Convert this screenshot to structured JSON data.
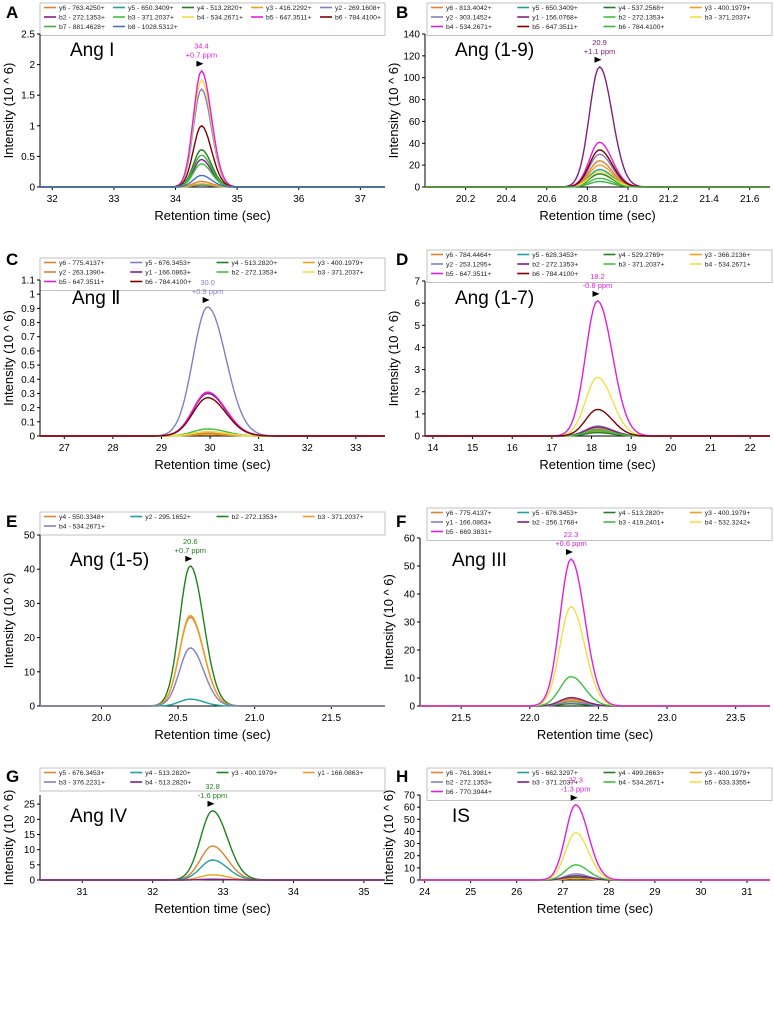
{
  "x_axis_label": "Retention time (sec)",
  "y_axis_label": "Intensity (10 ^ 6)",
  "chart_data": [
    {
      "type": "line",
      "letter": "A",
      "name": "Ang I",
      "xlim": [
        31.8,
        37.4
      ],
      "xticks": [
        "32",
        "33",
        "34",
        "35",
        "36",
        "37"
      ],
      "ylim": [
        0,
        2.5
      ],
      "yticks": [
        "0",
        "0.5",
        "1",
        "1.5",
        "2",
        "2.5"
      ],
      "peak": {
        "time": "34.4",
        "ppm": "+0.7 ppm",
        "x": 34.42,
        "color": "#e020d8"
      },
      "legend_cols": 5,
      "series": [
        {
          "name": "y6 - 763.4250+",
          "color": "#e08030",
          "peak": 0.09,
          "x": 34.42,
          "w": 0.13
        },
        {
          "name": "y5 - 650.3409+",
          "color": "#20a0a0",
          "peak": 0.03,
          "x": 34.42,
          "w": 0.13
        },
        {
          "name": "y4 - 513.2820+",
          "color": "#208020",
          "peak": 0.61,
          "x": 34.42,
          "w": 0.13
        },
        {
          "name": "y3 - 416.2292+",
          "color": "#f0a020",
          "peak": 0.05,
          "x": 34.42,
          "w": 0.13
        },
        {
          "name": "y2 - 269.1608+",
          "color": "#8080c0",
          "peak": 1.6,
          "x": 34.42,
          "w": 0.13
        },
        {
          "name": "b2 - 272.1353+",
          "color": "#802080",
          "peak": 0.45,
          "x": 34.42,
          "w": 0.13
        },
        {
          "name": "b3 - 371.2037+",
          "color": "#40c040",
          "peak": 0.38,
          "x": 34.42,
          "w": 0.13
        },
        {
          "name": "b4 - 534.2671+",
          "color": "#f0e040",
          "peak": 1.75,
          "x": 34.42,
          "w": 0.13
        },
        {
          "name": "b5 - 647.3511+",
          "color": "#e020d8",
          "peak": 1.9,
          "x": 34.42,
          "w": 0.13
        },
        {
          "name": "b6 - 784.4100+",
          "color": "#800000",
          "peak": 1.0,
          "x": 34.42,
          "w": 0.13
        },
        {
          "name": "b7 - 881.4628+",
          "color": "#40b040",
          "peak": 0.52,
          "x": 34.42,
          "w": 0.13
        },
        {
          "name": "b8 - 1028.5312+",
          "color": "#4070c0",
          "peak": 0.19,
          "x": 34.42,
          "w": 0.13
        }
      ]
    },
    {
      "type": "line",
      "letter": "B",
      "name": "Ang (1-9)",
      "xlim": [
        20.0,
        21.7
      ],
      "xticks": [
        "20.2",
        "20.4",
        "20.6",
        "20.8",
        "21.0",
        "21.2",
        "21.4",
        "21.6"
      ],
      "ylim": [
        0,
        140
      ],
      "yticks": [
        "0",
        "20",
        "40",
        "60",
        "80",
        "100",
        "120",
        "140"
      ],
      "peak": {
        "time": "20.9",
        "ppm": "+1.1 ppm",
        "x": 20.86,
        "color": "#802080"
      },
      "legend_cols": 4,
      "series": [
        {
          "name": "y6 - 813.4042+",
          "color": "#e08030",
          "peak": 24,
          "x": 20.86,
          "w": 0.05
        },
        {
          "name": "y5 - 650.3409+",
          "color": "#20a0a0",
          "peak": 16,
          "x": 20.86,
          "w": 0.05
        },
        {
          "name": "y4 - 537.2568+",
          "color": "#208020",
          "peak": 12,
          "x": 20.86,
          "w": 0.05
        },
        {
          "name": "y3 - 400.1979+",
          "color": "#f0a020",
          "peak": 20,
          "x": 20.86,
          "w": 0.05
        },
        {
          "name": "y2 - 303.1452+",
          "color": "#8080c0",
          "peak": 30,
          "x": 20.86,
          "w": 0.05
        },
        {
          "name": "y1 - 156.0768+",
          "color": "#802080",
          "peak": 110,
          "x": 20.86,
          "w": 0.05
        },
        {
          "name": "b2 - 272.1353+",
          "color": "#40c040",
          "peak": 8,
          "x": 20.86,
          "w": 0.05
        },
        {
          "name": "b3 - 371.2037+",
          "color": "#f0e040",
          "peak": 14,
          "x": 20.86,
          "w": 0.05
        },
        {
          "name": "b4 - 534.2671+",
          "color": "#e020d8",
          "peak": 41,
          "x": 20.86,
          "w": 0.05
        },
        {
          "name": "b5 - 647.3511+",
          "color": "#800000",
          "peak": 34,
          "x": 20.86,
          "w": 0.05
        },
        {
          "name": "b6 - 784.4100+",
          "color": "#40b040",
          "peak": 5,
          "x": 20.86,
          "w": 0.05
        }
      ]
    },
    {
      "type": "line",
      "letter": "C",
      "name": "Ang Ⅱ",
      "xlim": [
        26.5,
        33.6
      ],
      "xticks": [
        "27",
        "28",
        "29",
        "30",
        "31",
        "32",
        "33"
      ],
      "ylim": [
        0,
        1.1
      ],
      "yticks": [
        "0",
        "0.1",
        "0.2",
        "0.3",
        "0.4",
        "0.5",
        "0.6",
        "0.7",
        "0.8",
        "0.9",
        "1",
        "1.1"
      ],
      "peak": {
        "time": "30.0",
        "ppm": "+0.9 ppm",
        "x": 29.95,
        "color": "#8080c0"
      },
      "legend_cols": 4,
      "series": [
        {
          "name": "y6 - 775.4137+",
          "color": "#e08030",
          "peak": 0.03,
          "x": 29.95,
          "w": 0.3
        },
        {
          "name": "y5 - 676.3453+",
          "color": "#8080c0",
          "peak": 0.91,
          "x": 29.95,
          "w": 0.3
        },
        {
          "name": "y4 - 513.2820+",
          "color": "#208020",
          "peak": 0.02,
          "x": 29.95,
          "w": 0.3
        },
        {
          "name": "y3 - 400.1979+",
          "color": "#f0a020",
          "peak": 0.01,
          "x": 29.95,
          "w": 0.3
        },
        {
          "name": "y2 - 263.1390+",
          "color": "#e08030",
          "peak": 0.02,
          "x": 29.95,
          "w": 0.3
        },
        {
          "name": "y1 - 166.0863+",
          "color": "#802080",
          "peak": 0.3,
          "x": 29.95,
          "w": 0.3
        },
        {
          "name": "b2 - 272.1353+",
          "color": "#40c040",
          "peak": 0.05,
          "x": 29.95,
          "w": 0.3
        },
        {
          "name": "b3 - 371.2037+",
          "color": "#f0e040",
          "peak": 0.03,
          "x": 29.95,
          "w": 0.3
        },
        {
          "name": "b5 - 647.3511+",
          "color": "#e020d8",
          "peak": 0.31,
          "x": 29.95,
          "w": 0.3
        },
        {
          "name": "b6 - 784.4100+",
          "color": "#800000",
          "peak": 0.27,
          "x": 29.95,
          "w": 0.3
        }
      ]
    },
    {
      "type": "line",
      "letter": "D",
      "name": "Ang (1-7)",
      "xlim": [
        13.8,
        22.5
      ],
      "xticks": [
        "14",
        "15",
        "16",
        "17",
        "18",
        "19",
        "20",
        "21",
        "22"
      ],
      "ylim": [
        0,
        7
      ],
      "yticks": [
        "0",
        "1",
        "2",
        "3",
        "4",
        "5",
        "6",
        "7"
      ],
      "peak": {
        "time": "18.2",
        "ppm": "-0.8 ppm",
        "x": 18.15,
        "color": "#e020d8"
      },
      "legend_cols": 4,
      "series": [
        {
          "name": "y6 - 784.4464+",
          "color": "#e08030",
          "peak": 0.2,
          "x": 18.15,
          "w": 0.3
        },
        {
          "name": "y5 - 628.3453+",
          "color": "#20a0a0",
          "peak": 0.3,
          "x": 18.15,
          "w": 0.3
        },
        {
          "name": "y4 - 529.2769+",
          "color": "#208020",
          "peak": 0.15,
          "x": 18.15,
          "w": 0.3
        },
        {
          "name": "y3 - 366.2136+",
          "color": "#f0a020",
          "peak": 0.35,
          "x": 18.15,
          "w": 0.3
        },
        {
          "name": "y2 - 253.1295+",
          "color": "#8080c0",
          "peak": 0.45,
          "x": 18.15,
          "w": 0.3
        },
        {
          "name": "b2 - 272.1353+",
          "color": "#802080",
          "peak": 0.4,
          "x": 18.15,
          "w": 0.3
        },
        {
          "name": "b3 - 371.2037+",
          "color": "#40c040",
          "peak": 0.25,
          "x": 18.15,
          "w": 0.3
        },
        {
          "name": "b4 - 534.2671+",
          "color": "#f0e040",
          "peak": 2.65,
          "x": 18.15,
          "w": 0.3
        },
        {
          "name": "b5 - 647.3511+",
          "color": "#e020d8",
          "peak": 6.1,
          "x": 18.15,
          "w": 0.3
        },
        {
          "name": "b6 - 784.4100+",
          "color": "#800000",
          "peak": 1.2,
          "x": 18.15,
          "w": 0.3
        }
      ]
    },
    {
      "type": "line",
      "letter": "E",
      "name": "Ang (1-5)",
      "xlim": [
        19.6,
        21.85
      ],
      "xticks": [
        "20.0",
        "20.5",
        "21.0",
        "21.5"
      ],
      "ylim": [
        0,
        50
      ],
      "yticks": [
        "0",
        "10",
        "20",
        "30",
        "40",
        "50"
      ],
      "peak": {
        "time": "20.6",
        "ppm": "+0.7 ppm",
        "x": 20.58,
        "color": "#208020"
      },
      "legend_cols": 4,
      "series": [
        {
          "name": "y4 - 550.3348+",
          "color": "#e08030",
          "peak": 26,
          "x": 20.58,
          "w": 0.07
        },
        {
          "name": "y2 - 295.1652+",
          "color": "#20a0a0",
          "peak": 2,
          "x": 20.58,
          "w": 0.07
        },
        {
          "name": "b2 - 272.1353+",
          "color": "#208020",
          "peak": 41,
          "x": 20.58,
          "w": 0.07
        },
        {
          "name": "b3 - 371.2037+",
          "color": "#f0a020",
          "peak": 26.5,
          "x": 20.58,
          "w": 0.07
        },
        {
          "name": "b4 - 534.2671+",
          "color": "#8080c0",
          "peak": 17,
          "x": 20.58,
          "w": 0.07
        }
      ]
    },
    {
      "type": "line",
      "letter": "F",
      "name": "Ang III",
      "xlim": [
        21.2,
        23.75
      ],
      "xticks": [
        "21.5",
        "22.0",
        "22.5",
        "23.0",
        "23.5"
      ],
      "ylim": [
        0,
        60
      ],
      "yticks": [
        "0",
        "10",
        "20",
        "30",
        "40",
        "50",
        "60"
      ],
      "peak": {
        "time": "22.3",
        "ppm": "+0.6 ppm",
        "x": 22.3,
        "color": "#e020d8"
      },
      "legend_cols": 4,
      "series": [
        {
          "name": "y6 - 775.4137+",
          "color": "#e08030",
          "peak": 2.5,
          "x": 22.3,
          "w": 0.08
        },
        {
          "name": "y5 - 676.3453+",
          "color": "#20a0a0",
          "peak": 1.8,
          "x": 22.3,
          "w": 0.08
        },
        {
          "name": "y4 - 513.2820+",
          "color": "#208020",
          "peak": 0.8,
          "x": 22.3,
          "w": 0.08
        },
        {
          "name": "y3 - 400.1979+",
          "color": "#f0a020",
          "peak": 2.0,
          "x": 22.3,
          "w": 0.08
        },
        {
          "name": "y1 - 166.0863+",
          "color": "#8080c0",
          "peak": 1.5,
          "x": 22.3,
          "w": 0.08
        },
        {
          "name": "b2 - 256.1768+",
          "color": "#802080",
          "peak": 3.0,
          "x": 22.3,
          "w": 0.08
        },
        {
          "name": "b3 - 419.2401+",
          "color": "#40c040",
          "peak": 10.5,
          "x": 22.3,
          "w": 0.08
        },
        {
          "name": "b4 - 532.3242+",
          "color": "#f0e040",
          "peak": 35.5,
          "x": 22.3,
          "w": 0.08
        },
        {
          "name": "b5 - 669.3831+",
          "color": "#e020d8",
          "peak": 52.5,
          "x": 22.3,
          "w": 0.08
        }
      ]
    },
    {
      "type": "line",
      "letter": "G",
      "name": "Ang IV",
      "xlim": [
        30.4,
        35.3
      ],
      "xticks": [
        "31",
        "32",
        "33",
        "34",
        "35"
      ],
      "ylim": [
        0,
        28
      ],
      "yticks": [
        "0",
        "5",
        "10",
        "15",
        "20",
        "25"
      ],
      "peak": {
        "time": "32.8",
        "ppm": "-1.6 ppm",
        "x": 32.85,
        "color": "#208020"
      },
      "legend_cols": 4,
      "series": [
        {
          "name": "y5 - 676.3453+",
          "color": "#e08030",
          "peak": 11.2,
          "x": 32.85,
          "w": 0.17
        },
        {
          "name": "y4 - 513.2820+",
          "color": "#20a0a0",
          "peak": 6.6,
          "x": 32.85,
          "w": 0.17
        },
        {
          "name": "y3 - 400.1979+",
          "color": "#208020",
          "peak": 22.8,
          "x": 32.85,
          "w": 0.17
        },
        {
          "name": "y1 - 166.0863+",
          "color": "#f0a020",
          "peak": 1.7,
          "x": 32.85,
          "w": 0.17
        },
        {
          "name": "b3 - 376.2231+",
          "color": "#8080c0",
          "peak": 0.3,
          "x": 32.85,
          "w": 0.17
        },
        {
          "name": "b4 - 513.2820+",
          "color": "#802080",
          "peak": 0.2,
          "x": 32.85,
          "w": 0.17
        }
      ]
    },
    {
      "type": "line",
      "letter": "H",
      "name": "IS",
      "xlim": [
        23.9,
        31.5
      ],
      "xticks": [
        "24",
        "25",
        "26",
        "27",
        "28",
        "29",
        "30",
        "31"
      ],
      "ylim": [
        0,
        70
      ],
      "yticks": [
        "0",
        "10",
        "20",
        "30",
        "40",
        "50",
        "60",
        "70"
      ],
      "peak": {
        "time": "27.3",
        "ppm": "-1.3 ppm",
        "x": 27.28,
        "color": "#e020d8"
      },
      "legend_cols": 4,
      "series": [
        {
          "name": "y6 - 761.3981+",
          "color": "#e08030",
          "peak": 2.5,
          "x": 27.28,
          "w": 0.22
        },
        {
          "name": "y5 - 662.3297+",
          "color": "#20a0a0",
          "peak": 1.5,
          "x": 27.28,
          "w": 0.22
        },
        {
          "name": "y4 - 499.2663+",
          "color": "#208020",
          "peak": 2.0,
          "x": 27.28,
          "w": 0.22
        },
        {
          "name": "y3 - 400.1979+",
          "color": "#f0a020",
          "peak": 1.2,
          "x": 27.28,
          "w": 0.22
        },
        {
          "name": "b2 - 272.1353+",
          "color": "#8080c0",
          "peak": 5.0,
          "x": 27.28,
          "w": 0.22
        },
        {
          "name": "b3 - 371.2037+",
          "color": "#802080",
          "peak": 3.5,
          "x": 27.28,
          "w": 0.22
        },
        {
          "name": "b4 - 534.2671+",
          "color": "#40c040",
          "peak": 12.5,
          "x": 27.28,
          "w": 0.22
        },
        {
          "name": "b5 - 633.3355+",
          "color": "#f0e040",
          "peak": 39,
          "x": 27.28,
          "w": 0.22
        },
        {
          "name": "b6 - 770.3944+",
          "color": "#e020d8",
          "peak": 62,
          "x": 27.28,
          "w": 0.22
        }
      ]
    }
  ]
}
